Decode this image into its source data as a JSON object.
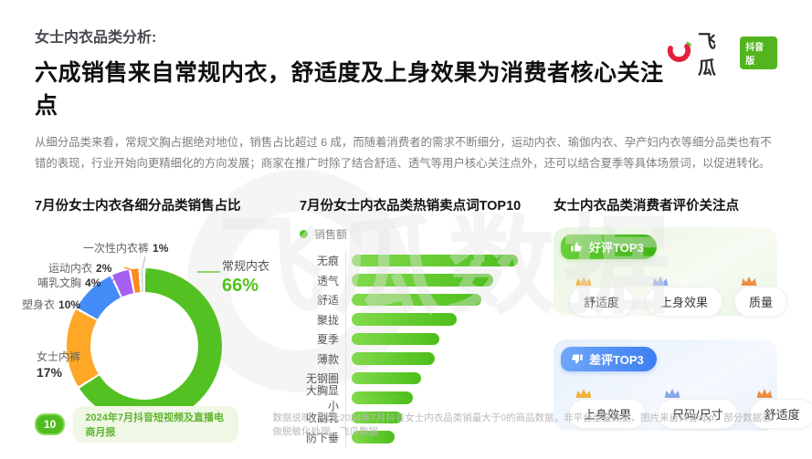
{
  "brand": {
    "name": "飞瓜",
    "badge": "抖音版"
  },
  "header": {
    "kicker": "女士内衣品类分析:",
    "title": "六成销售来自常规内衣，舒适度及上身效果为消费者核心关注点",
    "paragraph": "从细分品类来看，常规文胸占据绝对地位，销售占比超过 6 成，而随着消费者的需求不断细分，运动内衣、瑜伽内衣、孕产妇内衣等细分品类也有不错的表现，行业开始向更精细化的方向发展；商家在推广时除了结合舒适、透气等用户核心关注点外，还可以结合夏季等具体场景词，以促进转化。"
  },
  "watermark": "飞瓜数据",
  "chart_data": [
    {
      "type": "pie",
      "title": "7月份女士内衣各细分品类销售占比",
      "labels": [
        "常规内衣",
        "女士内裤",
        "塑身衣",
        "哺乳文胸",
        "运动内衣",
        "一次性内衣裤"
      ],
      "values": [
        66,
        17,
        10,
        4,
        2,
        1
      ],
      "value_labels": [
        "66%",
        "17%",
        "10%",
        "4%",
        "2%",
        "1%"
      ],
      "colors": [
        "#53c122",
        "#ffa726",
        "#448cf7",
        "#a45ff2",
        "#fb8a21",
        "#d9e3d6"
      ],
      "donut": true,
      "start_angle_deg": 0,
      "direction": "clockwise"
    },
    {
      "type": "bar",
      "title": "7月份女士内衣品类热销卖点词TOP10",
      "legend": [
        "销售额"
      ],
      "orientation": "horizontal",
      "categories": [
        "无痕",
        "透气",
        "舒适",
        "聚拢",
        "夏季",
        "薄款",
        "无钢圈",
        "大胸显小",
        "收副乳",
        "防下垂"
      ],
      "values": [
        100,
        85,
        78,
        63,
        53,
        50,
        42,
        37,
        30,
        26
      ],
      "value_note": "relative sales index, no numeric axis shown",
      "bar_color": "#52c41a"
    }
  ],
  "reviews": {
    "title": "女士内衣品类消费者评价关注点",
    "good": {
      "label": "好评TOP3",
      "items": [
        "舒适度",
        "上身效果",
        "质量"
      ]
    },
    "bad": {
      "label": "差评TOP3",
      "items": [
        "上身效果",
        "尺码/尺寸",
        "舒适度"
      ]
    },
    "crown_colors": [
      "#f3b13d",
      "#8aa6e8",
      "#ee8e43"
    ]
  },
  "footer": {
    "page_number": "10",
    "report_name": "2024年7月抖音短视频及直播电商月报",
    "note": "数据说明：统计2024年7月抖音女士内衣品类销量大于0的商品数据，非平台全量数据，图片来自抖音app，部分数据已做脱敏化处理，飞瓜数据"
  },
  "accent_colors": {
    "green": "#52c41a",
    "blue": "#3d7ef2"
  }
}
